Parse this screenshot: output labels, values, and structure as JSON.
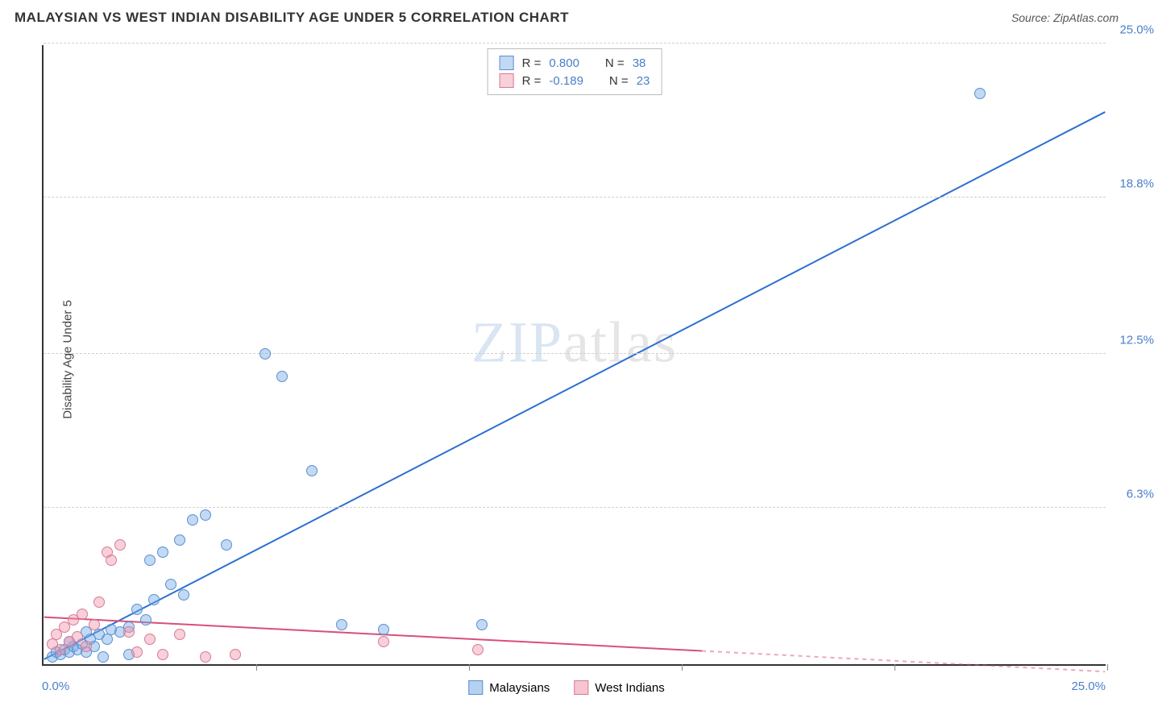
{
  "title": "MALAYSIAN VS WEST INDIAN DISABILITY AGE UNDER 5 CORRELATION CHART",
  "source_label": "Source: ",
  "source_name": "ZipAtlas.com",
  "y_axis_title": "Disability Age Under 5",
  "watermark_bold": "ZIP",
  "watermark_light": "atlas",
  "chart": {
    "type": "scatter-with-regression",
    "xlim": [
      0,
      25
    ],
    "ylim": [
      0,
      25
    ],
    "x_origin_label": "0.0%",
    "x_max_label": "25.0%",
    "y_ticks": [
      {
        "v": 6.3,
        "label": "6.3%"
      },
      {
        "v": 12.5,
        "label": "12.5%"
      },
      {
        "v": 18.8,
        "label": "18.8%"
      },
      {
        "v": 25.0,
        "label": "25.0%"
      }
    ],
    "x_tick_positions": [
      5,
      10,
      15,
      20,
      25
    ],
    "grid_color": "#d0d0d0",
    "background_color": "#ffffff",
    "marker_radius": 7
  },
  "series": [
    {
      "name": "Malaysians",
      "color_fill": "rgba(120,170,230,0.45)",
      "color_stroke": "#5a8fd0",
      "line_color": "#2e6fd0",
      "stats": {
        "R": "0.800",
        "N": "38"
      },
      "regression": {
        "x1": 0,
        "y1": 0.2,
        "x2": 25,
        "y2": 22.3,
        "dash_from_x": null
      },
      "points": [
        [
          0.2,
          0.3
        ],
        [
          0.3,
          0.5
        ],
        [
          0.4,
          0.4
        ],
        [
          0.5,
          0.6
        ],
        [
          0.6,
          0.5
        ],
        [
          0.7,
          0.7
        ],
        [
          0.8,
          0.6
        ],
        [
          0.9,
          0.8
        ],
        [
          1.0,
          0.5
        ],
        [
          1.1,
          1.0
        ],
        [
          1.2,
          0.7
        ],
        [
          1.3,
          1.2
        ],
        [
          1.5,
          1.0
        ],
        [
          1.6,
          1.4
        ],
        [
          1.8,
          1.3
        ],
        [
          2.0,
          1.5
        ],
        [
          2.2,
          2.2
        ],
        [
          2.4,
          1.8
        ],
        [
          2.6,
          2.6
        ],
        [
          1.4,
          0.3
        ],
        [
          2.0,
          0.4
        ],
        [
          2.5,
          4.2
        ],
        [
          2.8,
          4.5
        ],
        [
          3.0,
          3.2
        ],
        [
          3.2,
          5.0
        ],
        [
          3.5,
          5.8
        ],
        [
          3.8,
          6.0
        ],
        [
          4.3,
          4.8
        ],
        [
          3.3,
          2.8
        ],
        [
          5.2,
          12.5
        ],
        [
          5.6,
          11.6
        ],
        [
          6.3,
          7.8
        ],
        [
          7.0,
          1.6
        ],
        [
          8.0,
          1.4
        ],
        [
          10.3,
          1.6
        ],
        [
          22.0,
          23.0
        ],
        [
          0.6,
          0.9
        ],
        [
          1.0,
          1.3
        ]
      ]
    },
    {
      "name": "West Indians",
      "color_fill": "rgba(240,150,170,0.45)",
      "color_stroke": "#d87a95",
      "line_color": "#d94f7a",
      "stats": {
        "R": "-0.189",
        "N": "23"
      },
      "regression": {
        "x1": 0,
        "y1": 1.9,
        "x2": 25,
        "y2": -0.3,
        "dash_from_x": 15.5
      },
      "points": [
        [
          0.2,
          0.8
        ],
        [
          0.3,
          1.2
        ],
        [
          0.4,
          0.6
        ],
        [
          0.5,
          1.5
        ],
        [
          0.6,
          0.9
        ],
        [
          0.7,
          1.8
        ],
        [
          0.8,
          1.1
        ],
        [
          0.9,
          2.0
        ],
        [
          1.0,
          0.7
        ],
        [
          1.2,
          1.6
        ],
        [
          1.3,
          2.5
        ],
        [
          1.5,
          4.5
        ],
        [
          1.6,
          4.2
        ],
        [
          1.8,
          4.8
        ],
        [
          2.0,
          1.3
        ],
        [
          2.2,
          0.5
        ],
        [
          2.5,
          1.0
        ],
        [
          2.8,
          0.4
        ],
        [
          3.2,
          1.2
        ],
        [
          3.8,
          0.3
        ],
        [
          4.5,
          0.4
        ],
        [
          8.0,
          0.9
        ],
        [
          10.2,
          0.6
        ]
      ]
    }
  ],
  "footer_legend": [
    {
      "label": "Malaysians",
      "fill": "rgba(120,170,230,0.55)",
      "stroke": "#5a8fd0"
    },
    {
      "label": "West Indians",
      "fill": "rgba(240,150,170,0.55)",
      "stroke": "#d87a95"
    }
  ]
}
